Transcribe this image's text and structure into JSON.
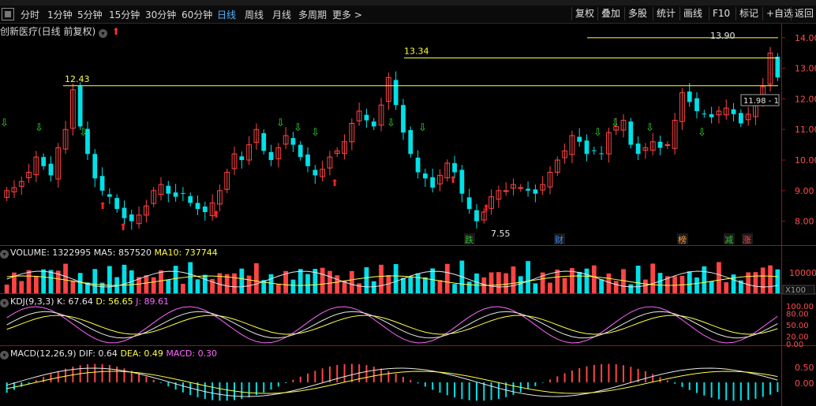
{
  "toolbar": {
    "items": [
      "分时",
      "1分钟",
      "5分钟",
      "15分钟",
      "30分钟",
      "60分钟",
      "日线",
      "周线",
      "月线",
      "多周期",
      "更多 >"
    ],
    "active_index": 6,
    "right_items": [
      "复权",
      "叠加",
      "多股",
      "统计",
      "画线",
      "F10",
      "标记",
      "+自选",
      "返回"
    ]
  },
  "title": {
    "stock_name": "创新医疗(日线 前复权)",
    "circle_icon_name": "settings-circle-icon",
    "arrow_icon_name": "red-up-arrow-icon"
  },
  "price_axis": {
    "labels": [
      "14.00",
      "13.00",
      "12.00",
      "11.00",
      "10.00",
      "9.00",
      "8.00"
    ],
    "min": 7.5,
    "max": 14.1
  },
  "annotations": {
    "high1": "12.43",
    "high2": "13.34",
    "high3": "13.90",
    "low": "7.55",
    "range": "11.98 - 1",
    "badges": [
      "跌",
      "财",
      "榜",
      "减",
      "涨"
    ]
  },
  "volume": {
    "label": "VOLUME: 1322995",
    "ma5": "MA5: 857520",
    "ma10": "MA10: 737744",
    "axis_label": "10000",
    "unit": "X100"
  },
  "kdj": {
    "label": "KDJ(9,3,3)",
    "k": "K: 67.64",
    "d": "D: 56.65",
    "j": "J: 89.61",
    "axis": [
      "100.00",
      "80.00",
      "50.00",
      "20.00",
      "0.00"
    ]
  },
  "macd": {
    "label": "MACD(12,26,9)",
    "dif": "DIF: 0.64",
    "dea": "DEA: 0.49",
    "macd": "MACD: 0.30",
    "axis": [
      "0.50",
      "0.00"
    ]
  },
  "colors": {
    "up": "#ff4444",
    "down": "#00e0e8",
    "yellow": "#ffff44",
    "pink": "#ff66ff",
    "axis": "#ff4d4d"
  },
  "chart_data": {
    "type": "candlestick",
    "close_approx": [
      9.0,
      9.1,
      9.3,
      9.6,
      10.1,
      9.8,
      9.5,
      10.4,
      11.0,
      12.3,
      11.1,
      10.2,
      9.4,
      9.0,
      8.8,
      8.4,
      8.1,
      8.0,
      8.2,
      8.5,
      9.0,
      9.2,
      8.9,
      8.8,
      8.9,
      8.6,
      8.4,
      8.3,
      8.6,
      9.0,
      9.6,
      10.2,
      10.0,
      10.5,
      11.0,
      10.3,
      10.0,
      10.4,
      10.8,
      10.5,
      10.1,
      9.8,
      9.5,
      9.7,
      10.1,
      10.3,
      10.6,
      11.2,
      11.6,
      11.3,
      11.1,
      11.8,
      12.7,
      11.8,
      10.9,
      10.2,
      9.6,
      9.4,
      9.1,
      9.5,
      9.9,
      9.6,
      8.9,
      8.4,
      8.0,
      8.3,
      8.8,
      9.0,
      9.0,
      9.2,
      9.1,
      9.0,
      8.9,
      9.2,
      9.6,
      10.0,
      10.3,
      10.8,
      10.6,
      10.2,
      10.3,
      10.2,
      10.9,
      11.1,
      11.3,
      10.5,
      10.2,
      10.4,
      10.6,
      10.4,
      10.5,
      11.3,
      12.2,
      11.9,
      11.6,
      11.5,
      11.4,
      11.6,
      11.7,
      11.5,
      11.2,
      11.5,
      11.9,
      12.4,
      13.5,
      12.7
    ],
    "ylim": [
      7.5,
      14.1
    ]
  }
}
